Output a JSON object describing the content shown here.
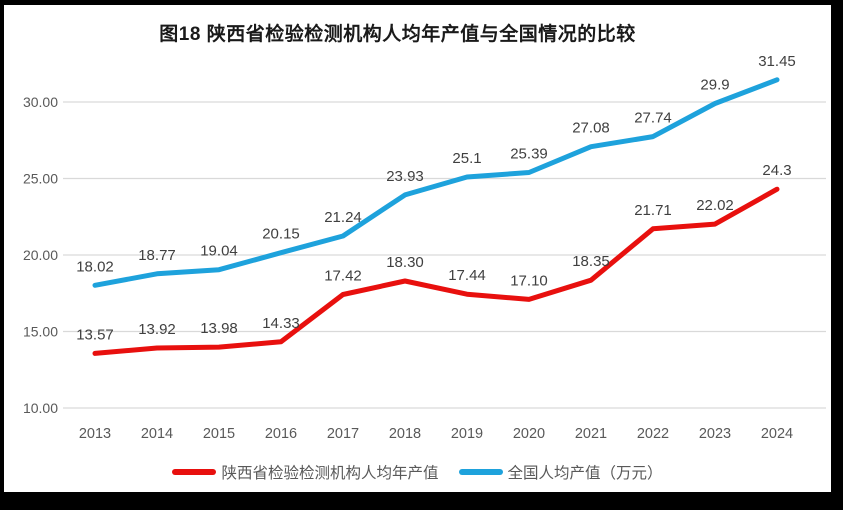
{
  "chart_data": {
    "type": "line",
    "title": "图18 陕西省检验检测机构人均年产值与全国情况的比较",
    "categories": [
      "2013",
      "2014",
      "2015",
      "2016",
      "2017",
      "2018",
      "2019",
      "2020",
      "2021",
      "2022",
      "2023",
      "2024"
    ],
    "series": [
      {
        "name": "陕西省检验检测机构人均年产值",
        "color": "#e8100e",
        "values": [
          13.57,
          13.92,
          13.98,
          14.33,
          17.42,
          18.3,
          17.44,
          17.1,
          18.35,
          21.71,
          22.02,
          24.3
        ],
        "labels": [
          "13.57",
          "13.92",
          "13.98",
          "14.33",
          "17.42",
          "18.30",
          "17.44",
          "17.10",
          "18.35",
          "21.71",
          "22.02",
          "24.3"
        ]
      },
      {
        "name": "全国人均产值（万元）",
        "color": "#1ea2dc",
        "values": [
          18.02,
          18.77,
          19.04,
          20.15,
          21.24,
          23.93,
          25.1,
          25.39,
          27.08,
          27.74,
          29.9,
          31.45
        ],
        "labels": [
          "18.02",
          "18.77",
          "19.04",
          "20.15",
          "21.24",
          "23.93",
          "25.1",
          "25.39",
          "27.08",
          "27.74",
          "29.9",
          "31.45"
        ]
      }
    ],
    "y_axis": {
      "tick_labels": [
        "10.00",
        "15.00",
        "20.00",
        "25.00",
        "30.00"
      ],
      "tick_values": [
        10,
        15,
        20,
        25,
        30
      ],
      "min": 10,
      "max": 32.6
    },
    "xlabel": "",
    "ylabel": "",
    "grid": true,
    "legend_position": "bottom",
    "styles": {
      "gridline_color": "#d9d9d9",
      "tick_label_color": "#595959",
      "data_label_color": "#404040",
      "title_color": "#1a1a1a",
      "legend_text_color": "#595959",
      "frame_border_color": "#000000",
      "background_color": "#ffffff"
    }
  }
}
